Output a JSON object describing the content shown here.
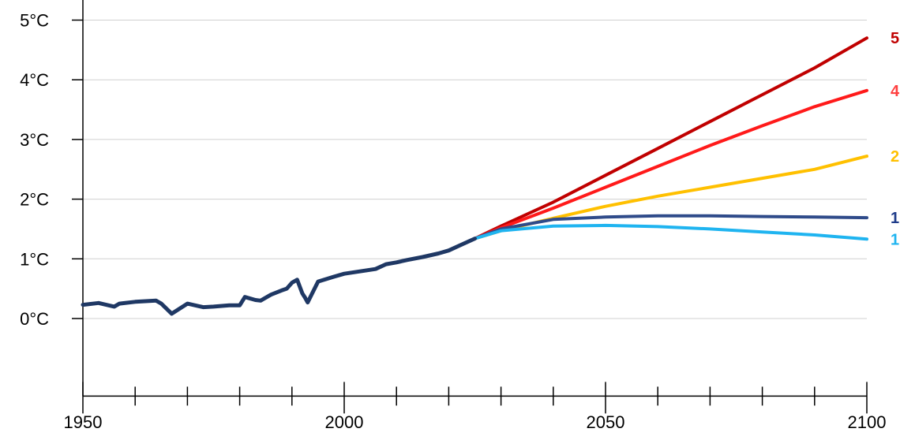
{
  "chart_data": {
    "type": "line",
    "title": "",
    "xlabel": "",
    "ylabel": "",
    "xlim": [
      1950,
      2100
    ],
    "ylim": [
      -1.3,
      5.3
    ],
    "grid": true,
    "x_ticks": [
      1950,
      2000,
      2050,
      2100
    ],
    "x_tick_labels": [
      "1950",
      "2000",
      "2050",
      "2100"
    ],
    "x_minor_step": 10,
    "y_ticks": [
      0,
      1,
      2,
      3,
      4,
      5
    ],
    "y_tick_labels": [
      "0°C",
      "1°C",
      "2°C",
      "3°C",
      "4°C",
      "5°C"
    ],
    "historical": {
      "color": "#1f3864",
      "x": [
        1950,
        1953,
        1956,
        1957,
        1960,
        1962,
        1964,
        1965,
        1967,
        1970,
        1973,
        1975,
        1978,
        1980,
        1981,
        1983,
        1984,
        1986,
        1988,
        1989,
        1990,
        1991,
        1992,
        1992.5,
        1993,
        1995,
        1998,
        2000,
        2003,
        2006,
        2008,
        2010,
        2012,
        2015,
        2018,
        2020,
        2022,
        2025
      ],
      "values": [
        0.23,
        0.26,
        0.2,
        0.25,
        0.28,
        0.29,
        0.3,
        0.25,
        0.08,
        0.25,
        0.19,
        0.2,
        0.22,
        0.22,
        0.36,
        0.31,
        0.3,
        0.4,
        0.47,
        0.5,
        0.6,
        0.65,
        0.42,
        0.35,
        0.27,
        0.62,
        0.7,
        0.75,
        0.79,
        0.83,
        0.91,
        0.94,
        0.98,
        1.03,
        1.09,
        1.14,
        1.22,
        1.34
      ]
    },
    "x_projection": [
      2025,
      2030,
      2040,
      2050,
      2060,
      2070,
      2080,
      2090,
      2100
    ],
    "series": [
      {
        "color": "#c00000",
        "values": [
          1.34,
          1.55,
          1.95,
          2.4,
          2.85,
          3.3,
          3.75,
          4.2,
          4.7
        ]
      },
      {
        "color": "#ff1a1a",
        "values": [
          1.34,
          1.52,
          1.85,
          2.2,
          2.55,
          2.9,
          3.23,
          3.55,
          3.82
        ]
      },
      {
        "color": "#ffc000",
        "values": [
          1.34,
          1.47,
          1.68,
          1.88,
          2.05,
          2.2,
          2.35,
          2.5,
          2.72
        ]
      },
      {
        "color": "#2f4b8a",
        "values": [
          1.34,
          1.5,
          1.66,
          1.7,
          1.72,
          1.72,
          1.71,
          1.7,
          1.69
        ]
      },
      {
        "color": "#1fb4f0",
        "values": [
          1.34,
          1.47,
          1.55,
          1.56,
          1.54,
          1.5,
          1.45,
          1.4,
          1.33
        ]
      }
    ],
    "end_labels": [
      {
        "text": "5",
        "color": "#c00000",
        "value": 4.7
      },
      {
        "text": "4",
        "color": "#ff4040",
        "value": 3.82
      },
      {
        "text": "2",
        "color": "#ffc000",
        "value": 2.72
      },
      {
        "text": "1",
        "color": "#1f3c8a",
        "value": 1.69
      },
      {
        "text": "1",
        "color": "#1fb4f0",
        "value": 1.33
      }
    ]
  }
}
